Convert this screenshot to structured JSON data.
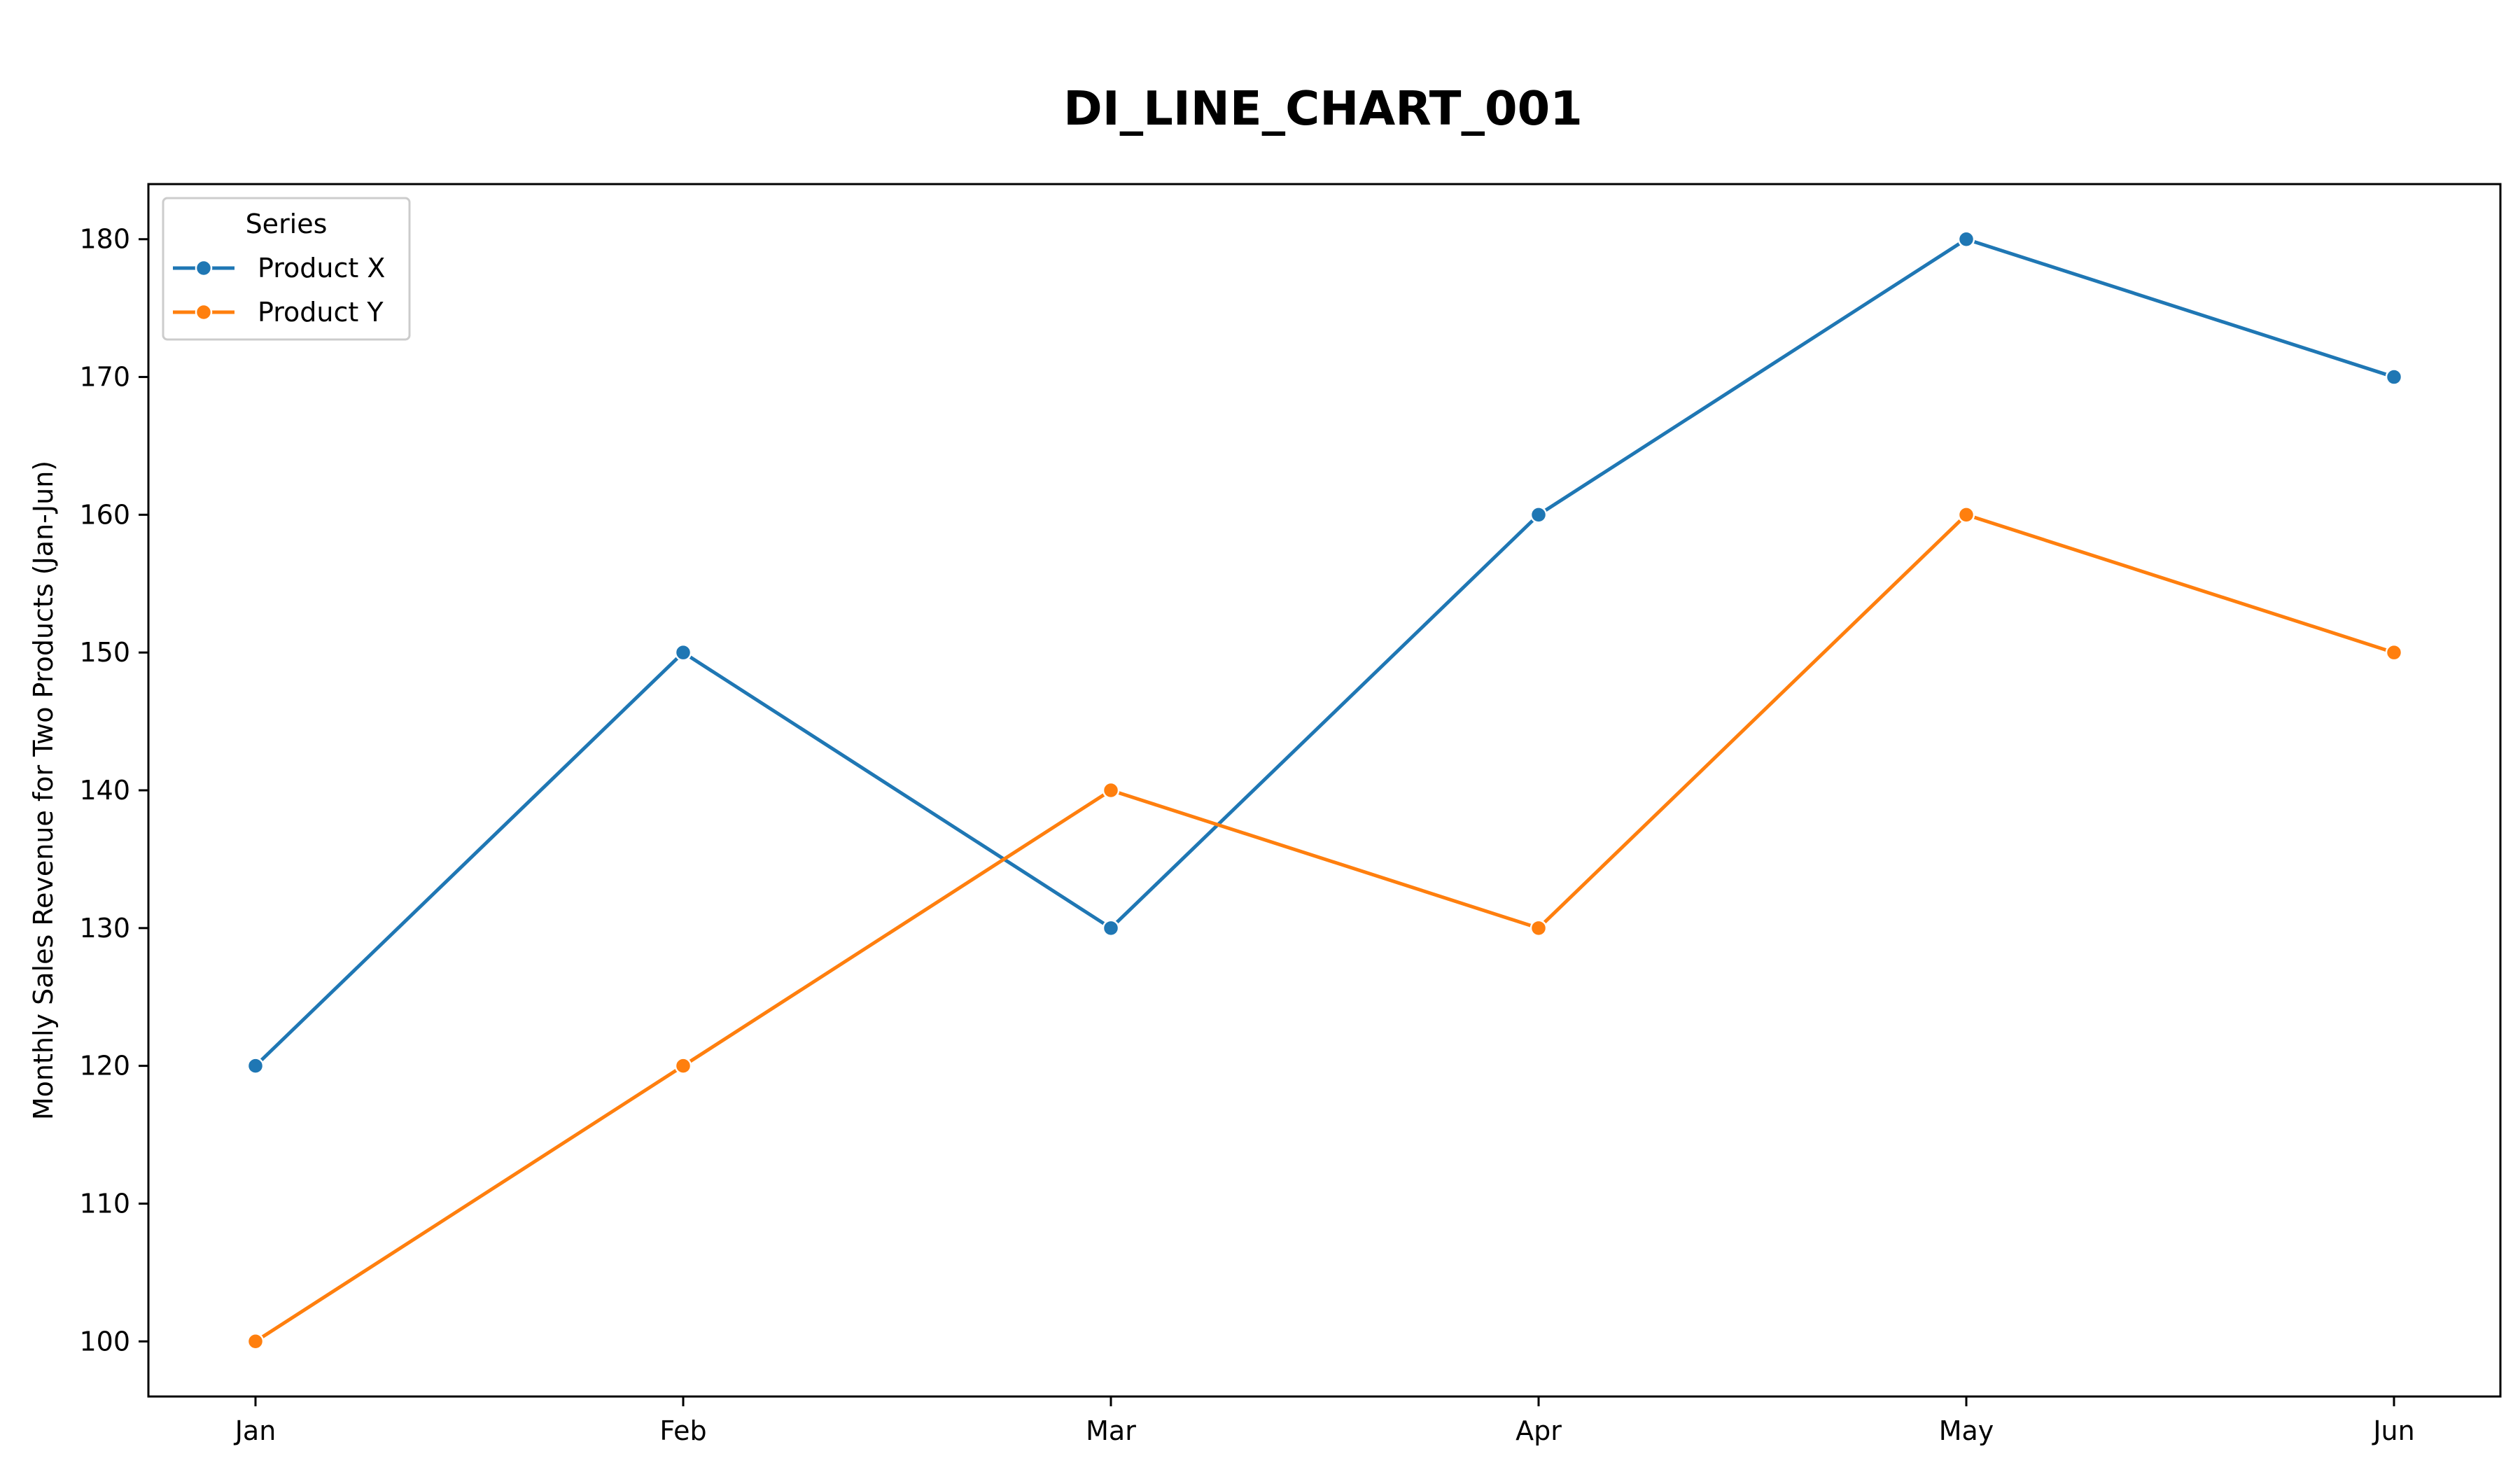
{
  "chart_data": {
    "type": "line",
    "title": "DI_LINE_CHART_001",
    "xlabel": "",
    "ylabel": "Monthly Sales Revenue for Two Products (Jan-Jun)",
    "categories": [
      "Jan",
      "Feb",
      "Mar",
      "Apr",
      "May",
      "Jun"
    ],
    "ylim": [
      96,
      184
    ],
    "yticks": [
      100,
      110,
      120,
      130,
      140,
      150,
      160,
      170,
      180
    ],
    "grid": false,
    "legend": {
      "title": "Series",
      "placement": "top-left"
    },
    "series": [
      {
        "name": "Product X",
        "color": "#1f77b4",
        "marker": "circle",
        "values": [
          120,
          150,
          130,
          160,
          180,
          170
        ]
      },
      {
        "name": "Product Y",
        "color": "#ff7f0e",
        "marker": "circle",
        "values": [
          100,
          120,
          140,
          130,
          160,
          150
        ]
      }
    ]
  }
}
